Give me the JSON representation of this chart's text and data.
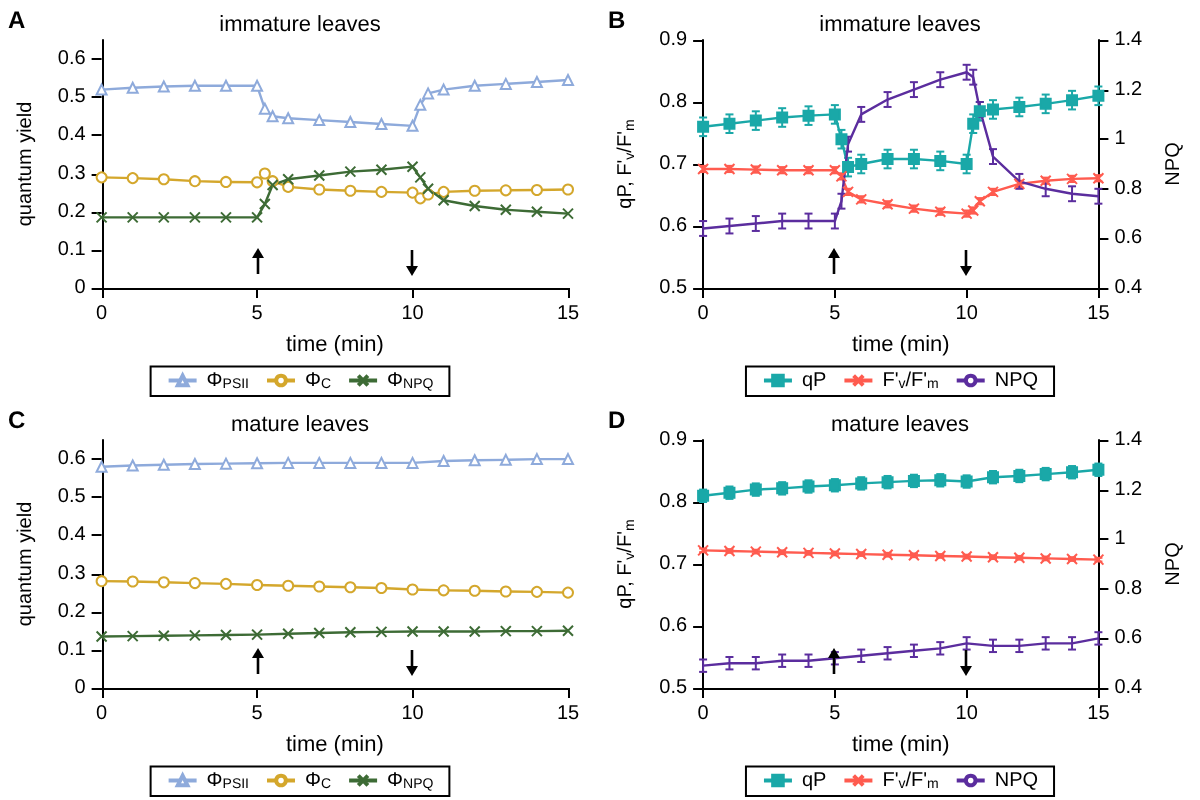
{
  "chart_data": [
    {
      "type": "line",
      "title": "immature leaves",
      "xlabel": "time (min)",
      "ylabel": "quantum yield",
      "x": [
        0,
        1,
        2,
        3,
        4,
        5,
        5.25,
        5.5,
        6,
        7,
        8,
        9,
        10,
        10.25,
        10.5,
        11,
        12,
        13,
        14,
        15
      ],
      "xlim": [
        0,
        15
      ],
      "xticks": [
        0,
        5,
        10,
        15
      ],
      "ylim": [
        0,
        0.65
      ],
      "yticks": [
        0,
        0.1,
        0.2,
        0.3,
        0.4,
        0.5,
        0.6
      ],
      "legend": "bottom",
      "grid": false,
      "annotations": [
        "A"
      ],
      "series": [
        {
          "name": "Φ$_{PSII}$",
          "color": "#8eaadb",
          "marker": "triangle",
          "values": [
            0.52,
            0.525,
            0.528,
            0.53,
            0.53,
            0.53,
            0.47,
            0.45,
            0.445,
            0.44,
            0.435,
            0.43,
            0.425,
            0.48,
            0.51,
            0.52,
            0.53,
            0.535,
            0.54,
            0.545
          ]
        },
        {
          "name": "Φ$_{C}$",
          "color": "#d4a72c",
          "marker": "circle",
          "values": [
            0.29,
            0.288,
            0.285,
            0.28,
            0.278,
            0.277,
            0.3,
            0.28,
            0.265,
            0.258,
            0.255,
            0.252,
            0.25,
            0.235,
            0.245,
            0.252,
            0.255,
            0.256,
            0.257,
            0.258
          ]
        },
        {
          "name": "Φ$_{NPQ}$",
          "color": "#3d6b35",
          "marker": "cross",
          "values": [
            0.185,
            0.185,
            0.185,
            0.185,
            0.185,
            0.185,
            0.22,
            0.27,
            0.285,
            0.295,
            0.305,
            0.31,
            0.318,
            0.29,
            0.26,
            0.23,
            0.215,
            0.205,
            0.2,
            0.195
          ]
        }
      ]
    },
    {
      "type": "line",
      "title": "immature leaves",
      "xlabel": "time (min)",
      "ylabel": "qP, F'$_{v}$/F'$_{m}$",
      "y2label": "NPQ",
      "x": [
        0,
        1,
        2,
        3,
        4,
        5,
        5.25,
        5.5,
        6,
        7,
        8,
        9,
        10,
        10.25,
        10.5,
        11,
        12,
        13,
        14,
        15
      ],
      "xlim": [
        0,
        15
      ],
      "xticks": [
        0,
        5,
        10,
        15
      ],
      "ylim": [
        0.5,
        0.9
      ],
      "yticks": [
        0.5,
        0.6,
        0.7,
        0.8,
        0.9
      ],
      "y2lim": [
        0.4,
        1.4
      ],
      "y2ticks": [
        0.4,
        0.6,
        0.8,
        1,
        1.2,
        1.4
      ],
      "legend": "bottom",
      "grid": false,
      "annotations": [
        "B"
      ],
      "series": [
        {
          "name": "qP",
          "color": "#1aa8a8",
          "marker": "square",
          "values": [
            0.76,
            0.765,
            0.77,
            0.775,
            0.778,
            0.78,
            0.74,
            0.695,
            0.7,
            0.708,
            0.708,
            0.705,
            0.7,
            0.765,
            0.785,
            0.788,
            0.792,
            0.797,
            0.803,
            0.81
          ],
          "errors": [
            0.015,
            0.015,
            0.015,
            0.015,
            0.015,
            0.015,
            0.015,
            0.015,
            0.015,
            0.015,
            0.015,
            0.015,
            0.015,
            0.015,
            0.015,
            0.015,
            0.015,
            0.015,
            0.015,
            0.015
          ]
        },
        {
          "name": "F'$_{v}$/F'$_{m}$",
          "color": "#ff5b4f",
          "marker": "cross",
          "values": [
            0.692,
            0.692,
            0.691,
            0.69,
            0.69,
            0.69,
            0.68,
            0.655,
            0.643,
            0.635,
            0.628,
            0.623,
            0.62,
            0.625,
            0.64,
            0.655,
            0.668,
            0.673,
            0.676,
            0.677
          ],
          "errors": [
            0.005,
            0.005,
            0.005,
            0.005,
            0.005,
            0.005,
            0.005,
            0.005,
            0.005,
            0.005,
            0.005,
            0.005,
            0.005,
            0.005,
            0.005,
            0.005,
            0.005,
            0.005,
            0.005,
            0.005
          ]
        },
        {
          "name": "NPQ",
          "color": "#5b2d9e",
          "marker": "none",
          "axis": "y2",
          "values": [
            0.64,
            0.65,
            0.66,
            0.67,
            0.67,
            0.67,
            0.75,
            0.98,
            1.1,
            1.16,
            1.2,
            1.24,
            1.27,
            1.25,
            1.12,
            0.93,
            0.83,
            0.8,
            0.78,
            0.77
          ],
          "errors": [
            0.03,
            0.03,
            0.03,
            0.03,
            0.03,
            0.03,
            0.03,
            0.03,
            0.03,
            0.03,
            0.03,
            0.03,
            0.03,
            0.03,
            0.03,
            0.03,
            0.03,
            0.03,
            0.03,
            0.03
          ]
        }
      ]
    },
    {
      "type": "line",
      "title": "mature leaves",
      "xlabel": "time (min)",
      "ylabel": "quantum yield",
      "x": [
        0,
        1,
        2,
        3,
        4,
        5,
        6,
        7,
        8,
        9,
        10,
        11,
        12,
        13,
        14,
        15
      ],
      "xlim": [
        0,
        15
      ],
      "xticks": [
        0,
        5,
        10,
        15
      ],
      "ylim": [
        0,
        0.65
      ],
      "yticks": [
        0,
        0.1,
        0.2,
        0.3,
        0.4,
        0.5,
        0.6
      ],
      "legend": "bottom",
      "grid": false,
      "annotations": [
        "C"
      ],
      "series": [
        {
          "name": "Φ$_{PSII}$",
          "color": "#8eaadb",
          "marker": "triangle",
          "values": [
            0.58,
            0.583,
            0.585,
            0.587,
            0.588,
            0.589,
            0.59,
            0.59,
            0.59,
            0.59,
            0.59,
            0.595,
            0.597,
            0.598,
            0.6,
            0.6
          ]
        },
        {
          "name": "Φ$_{C}$",
          "color": "#d4a72c",
          "marker": "circle",
          "values": [
            0.28,
            0.279,
            0.277,
            0.275,
            0.273,
            0.27,
            0.268,
            0.266,
            0.264,
            0.262,
            0.258,
            0.256,
            0.255,
            0.253,
            0.252,
            0.25
          ]
        },
        {
          "name": "Φ$_{NPQ}$",
          "color": "#3d6b35",
          "marker": "cross",
          "values": [
            0.135,
            0.136,
            0.137,
            0.138,
            0.139,
            0.14,
            0.142,
            0.144,
            0.146,
            0.147,
            0.148,
            0.148,
            0.148,
            0.149,
            0.149,
            0.15
          ]
        }
      ]
    },
    {
      "type": "line",
      "title": "mature leaves",
      "xlabel": "time (min)",
      "ylabel": "qP, F'$_{v}$/F'$_{m}$",
      "y2label": "NPQ",
      "x": [
        0,
        1,
        2,
        3,
        4,
        5,
        6,
        7,
        8,
        9,
        10,
        11,
        12,
        13,
        14,
        15
      ],
      "xlim": [
        0,
        15
      ],
      "xticks": [
        0,
        5,
        10,
        15
      ],
      "ylim": [
        0.5,
        0.9
      ],
      "yticks": [
        0.5,
        0.6,
        0.7,
        0.8,
        0.9
      ],
      "y2lim": [
        0.4,
        1.4
      ],
      "y2ticks": [
        0.4,
        0.6,
        0.8,
        1,
        1.2,
        1.4
      ],
      "legend": "bottom",
      "grid": false,
      "annotations": [
        "D"
      ],
      "series": [
        {
          "name": "qP",
          "color": "#1aa8a8",
          "marker": "square",
          "values": [
            0.81,
            0.815,
            0.82,
            0.822,
            0.825,
            0.827,
            0.83,
            0.832,
            0.834,
            0.835,
            0.833,
            0.84,
            0.842,
            0.845,
            0.848,
            0.852
          ],
          "errors": [
            0.01,
            0.01,
            0.01,
            0.01,
            0.01,
            0.01,
            0.01,
            0.01,
            0.01,
            0.01,
            0.01,
            0.01,
            0.01,
            0.01,
            0.01,
            0.01
          ]
        },
        {
          "name": "F'$_{v}$/F'$_{m}$",
          "color": "#ff5b4f",
          "marker": "cross",
          "values": [
            0.722,
            0.721,
            0.72,
            0.719,
            0.718,
            0.717,
            0.716,
            0.715,
            0.714,
            0.713,
            0.712,
            0.711,
            0.71,
            0.709,
            0.708,
            0.707
          ],
          "errors": [
            0.003,
            0.003,
            0.003,
            0.003,
            0.003,
            0.003,
            0.003,
            0.003,
            0.003,
            0.003,
            0.003,
            0.003,
            0.003,
            0.003,
            0.003,
            0.003
          ]
        },
        {
          "name": "NPQ",
          "color": "#5b2d9e",
          "marker": "none",
          "axis": "y2",
          "values": [
            0.49,
            0.5,
            0.5,
            0.51,
            0.51,
            0.52,
            0.53,
            0.54,
            0.55,
            0.56,
            0.58,
            0.57,
            0.57,
            0.58,
            0.58,
            0.6
          ],
          "errors": [
            0.025,
            0.025,
            0.025,
            0.025,
            0.025,
            0.025,
            0.025,
            0.025,
            0.025,
            0.025,
            0.025,
            0.025,
            0.025,
            0.025,
            0.025,
            0.025
          ]
        }
      ]
    }
  ]
}
